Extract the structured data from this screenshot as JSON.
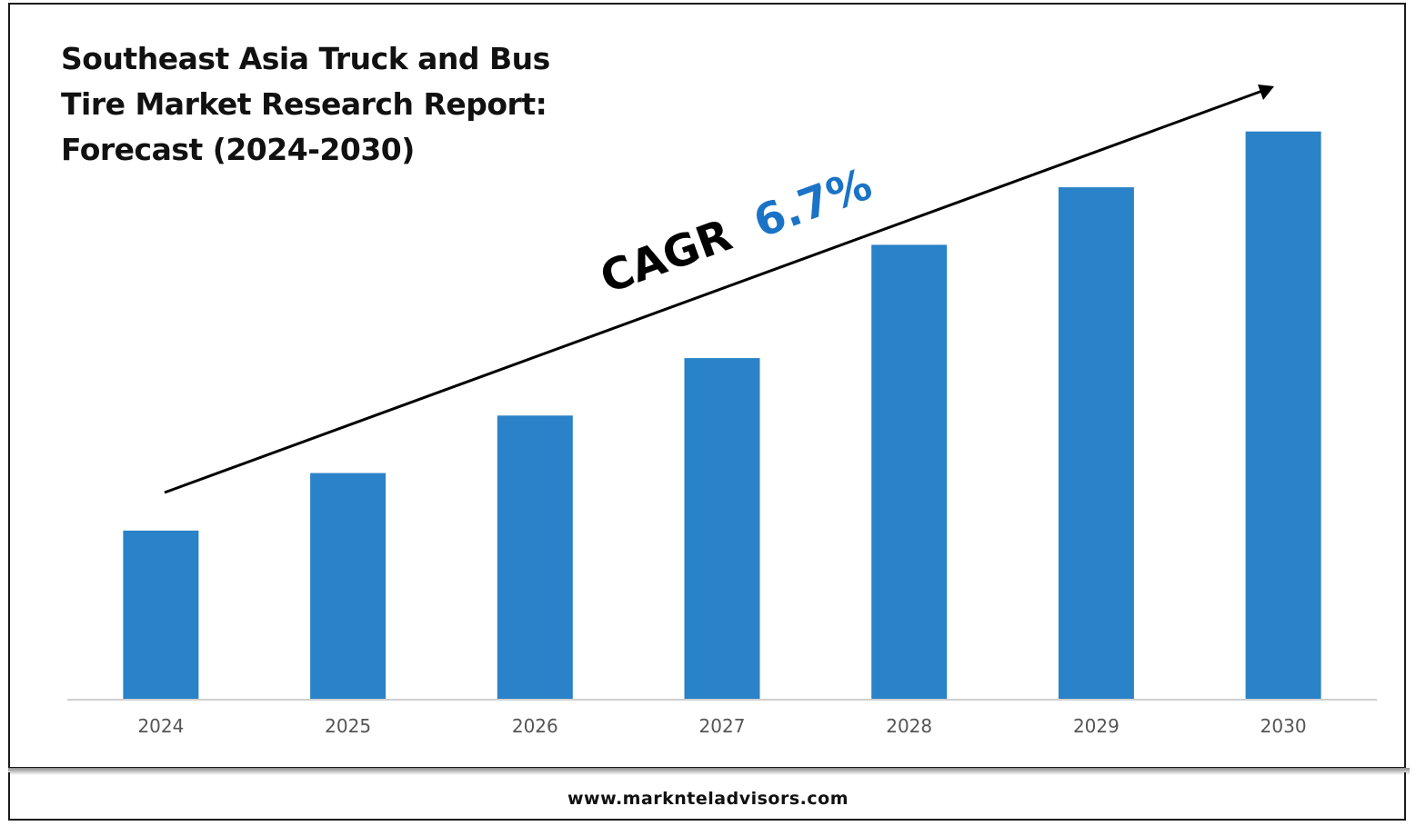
{
  "title_lines": [
    "Southeast Asia Truck and Bus",
    "Tire Market Research Report:",
    "Forecast (2024-2030)"
  ],
  "annotation": {
    "label": "CAGR",
    "value": "6.7%",
    "label_color": "#000000",
    "value_color": "#1a73c6"
  },
  "footer": {
    "website": "www.marknteladvisors.com"
  },
  "colors": {
    "bar": "#2a82c8",
    "axis": "#d0d0d0",
    "arrow": "#000000"
  },
  "chart_data": {
    "type": "bar",
    "title": "Southeast Asia Truck and Bus Tire Market Research Report: Forecast (2024-2030)",
    "categories": [
      "2024",
      "2025",
      "2026",
      "2027",
      "2028",
      "2029",
      "2030"
    ],
    "values": [
      1.0,
      1.34,
      1.68,
      2.02,
      2.69,
      3.03,
      3.36
    ],
    "value_note_unit": "",
    "xlabel": "",
    "ylabel": "",
    "ylim": [
      0,
      3.6
    ],
    "grid": false,
    "legend": "none",
    "annotation": "CAGR 6.7%"
  }
}
